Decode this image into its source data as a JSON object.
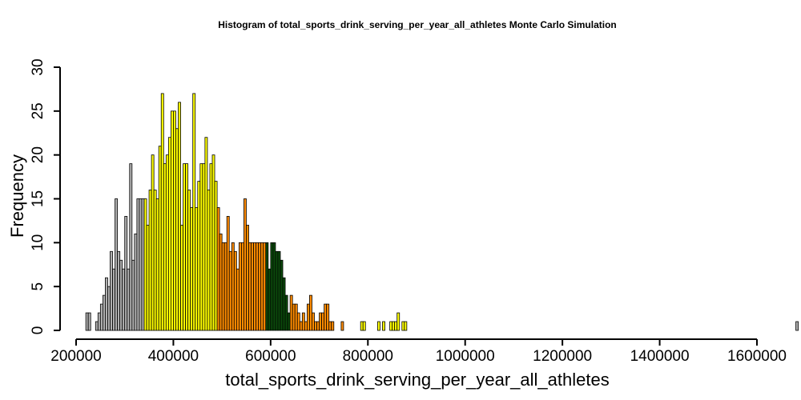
{
  "chart_data": {
    "type": "bar",
    "title": "Histogram of  total_sports_drink_serving_per_year_all_athletes  Monte Carlo Simulation",
    "xlabel": "total_sports_drink_serving_per_year_all_athletes",
    "ylabel": "Frequency",
    "xlim": [
      200000,
      1600000
    ],
    "ylim": [
      0,
      30
    ],
    "x_ticks": [
      200000,
      400000,
      600000,
      800000,
      1000000,
      1200000,
      1400000,
      1600000
    ],
    "x_tick_labels": [
      "200000",
      "400000",
      "600000",
      "800000",
      "1000000",
      "1200000",
      "1400000",
      "1600000"
    ],
    "y_ticks": [
      0,
      5,
      10,
      15,
      20,
      25,
      30
    ],
    "y_tick_labels": [
      "0",
      "5",
      "10",
      "15",
      "20",
      "25",
      "30"
    ],
    "grid": false,
    "bin_start": 220000,
    "bin_width": 5000,
    "values": [
      2,
      2,
      0,
      0,
      1,
      2,
      3,
      4,
      6,
      5,
      9,
      7,
      15,
      9,
      8,
      7,
      13,
      7,
      19,
      8,
      11,
      15,
      15,
      15,
      15,
      12,
      16,
      20,
      16,
      15,
      21,
      27,
      19,
      20,
      22,
      25,
      25,
      23,
      26,
      12,
      19,
      19,
      16,
      14,
      27,
      14,
      17,
      19,
      19,
      22,
      16,
      19,
      20,
      17,
      14,
      11,
      10,
      10,
      13,
      9,
      10,
      9,
      7,
      10,
      10,
      15,
      12,
      10,
      10,
      10,
      10,
      10,
      10,
      10,
      10,
      7,
      10,
      10,
      9,
      9,
      8,
      6,
      4,
      2,
      4,
      3,
      3,
      2,
      1,
      2,
      1,
      3,
      4,
      2,
      1,
      1,
      2,
      2,
      3,
      3,
      1,
      1,
      0,
      0,
      0,
      1,
      0,
      0,
      0,
      0,
      0,
      0,
      0,
      1,
      1,
      0,
      0,
      0,
      0,
      0,
      1,
      0,
      1,
      0,
      0,
      1,
      1,
      1,
      2,
      0,
      1,
      1,
      0,
      0,
      0,
      0,
      0,
      0,
      0,
      0,
      0,
      0,
      0,
      0,
      0,
      0,
      0,
      0,
      0,
      0,
      0,
      0,
      0,
      0,
      0,
      0,
      0,
      0,
      0,
      0,
      0,
      0,
      0,
      0,
      0,
      0,
      0,
      0,
      0,
      0,
      0,
      0,
      0,
      0,
      0,
      0,
      0,
      0,
      0,
      0,
      0,
      0,
      0,
      0,
      0,
      0,
      0,
      0,
      0,
      0,
      0,
      0,
      0,
      0,
      0,
      0,
      0,
      0,
      0,
      0,
      0,
      0,
      0,
      0,
      0,
      0,
      0,
      0,
      0,
      0,
      0,
      0,
      0,
      0,
      0,
      0,
      0,
      0,
      0,
      0,
      0,
      0,
      0,
      0,
      0,
      0,
      0,
      0,
      0,
      0,
      0,
      0,
      0,
      0,
      0,
      0,
      0,
      0,
      0,
      0,
      0,
      0,
      0,
      0,
      0,
      0,
      0,
      0,
      0,
      0,
      0,
      0,
      0,
      0,
      0,
      0,
      0,
      0,
      0,
      0,
      0,
      0,
      0,
      0,
      0,
      0,
      0,
      0,
      0,
      0,
      0,
      0,
      0,
      0,
      0,
      0,
      0,
      0,
      0,
      0,
      0,
      0,
      0,
      0,
      0,
      0,
      0,
      0,
      0,
      0,
      0,
      0,
      1
    ],
    "colors": {
      "tail": "#b0b0b0",
      "outer": "#ffff00",
      "inner": "#ff8c00",
      "center": "#0b4a0b",
      "stroke": "#000000"
    },
    "color_bands": [
      {
        "from": 220000,
        "to": 340000,
        "color": "tail"
      },
      {
        "from": 340000,
        "to": 490000,
        "color": "outer"
      },
      {
        "from": 490000,
        "to": 590000,
        "color": "inner"
      },
      {
        "from": 590000,
        "to": 640000,
        "color": "center"
      },
      {
        "from": 640000,
        "to": 750000,
        "color": "inner"
      },
      {
        "from": 750000,
        "to": 950000,
        "color": "outer"
      },
      {
        "from": 950000,
        "to": 1580000,
        "color": "tail"
      }
    ]
  }
}
